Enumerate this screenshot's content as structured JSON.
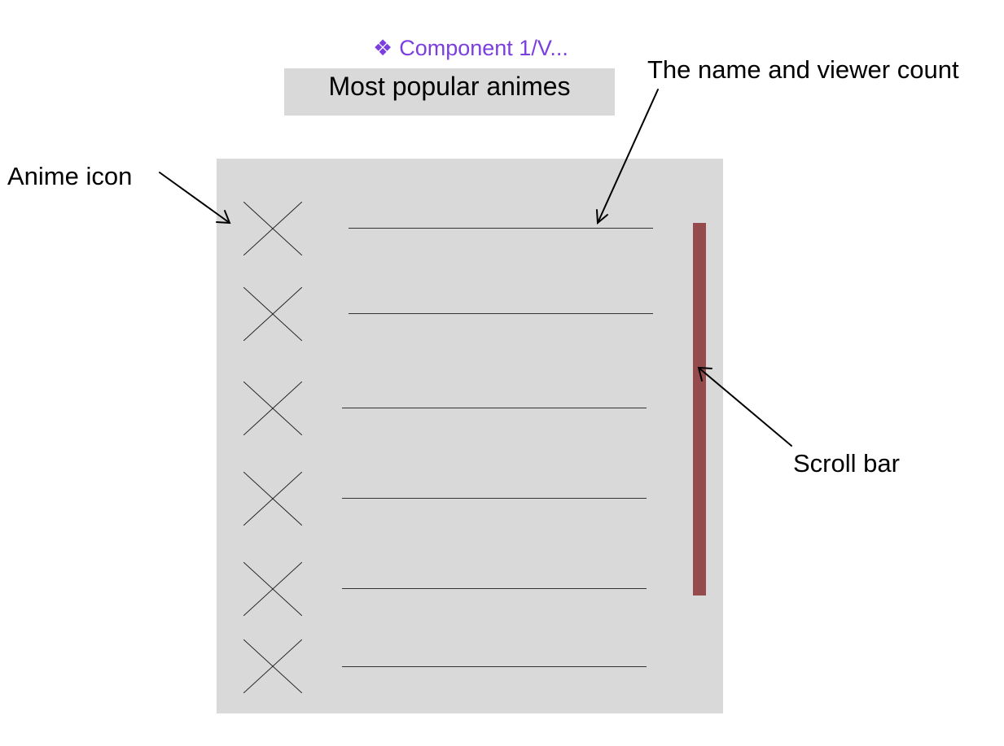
{
  "component_label": {
    "icon": "component-diamond-icon",
    "glyph": "❖",
    "text": "Component 1/V..."
  },
  "title": "Most popular animes",
  "list": {
    "row_count": 6,
    "item_icon": "placeholder-x-icon"
  },
  "annotations": {
    "name_viewer": "The name and viewer count",
    "anime_icon": "Anime icon",
    "scroll_bar": "Scroll bar"
  },
  "colors": {
    "panel": "#d9d9d9",
    "scrollbar": "#954b4b",
    "component_label": "#7b3fe0"
  }
}
